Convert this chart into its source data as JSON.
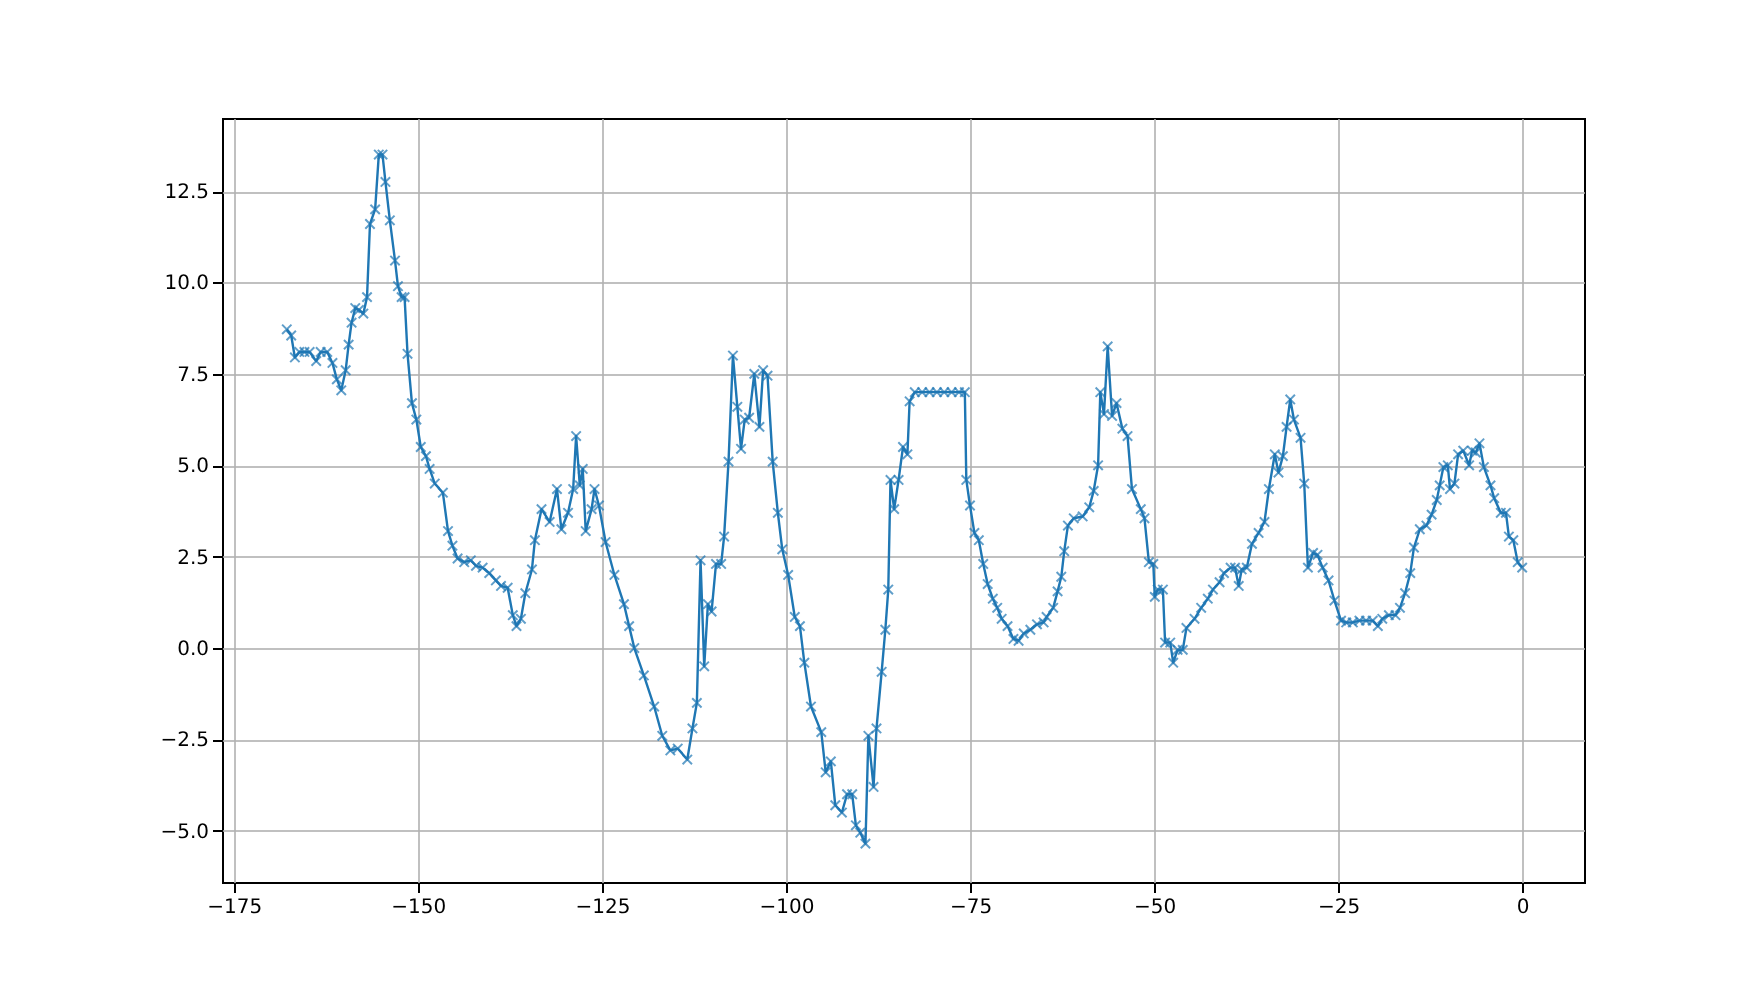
{
  "chart_data": {
    "type": "line",
    "marker": "cross",
    "line_style": "solid",
    "grid": true,
    "xlim": [
      -176.6,
      8.4
    ],
    "ylim": [
      -6.4,
      14.5
    ],
    "xticks": [
      {
        "value": -175,
        "label": "−175"
      },
      {
        "value": -150,
        "label": "−150"
      },
      {
        "value": -125,
        "label": "−125"
      },
      {
        "value": -100,
        "label": "−100"
      },
      {
        "value": -75,
        "label": "−75"
      },
      {
        "value": -50,
        "label": "−50"
      },
      {
        "value": -25,
        "label": "−25"
      },
      0
    ],
    "yticks": [
      {
        "value": -5,
        "label": "−5.0"
      },
      {
        "value": -2.5,
        "label": "−2.5"
      },
      {
        "value": 0,
        "label": "0.0"
      },
      2.5,
      {
        "value": 5,
        "label": "5.0"
      },
      7.5,
      {
        "value": 10,
        "label": "10.0"
      },
      12.5
    ],
    "series": [
      {
        "color": "#1f77b4",
        "x": [
          -167.8,
          -167.2,
          -166.7,
          -166.1,
          -165.4,
          -164.7,
          -163.8,
          -163.2,
          -162.3,
          -161.6,
          -161,
          -160.4,
          -159.8,
          -159.4,
          -159,
          -158.5,
          -158,
          -157.4,
          -156.9,
          -156.5,
          -155.8,
          -155.3,
          -154.8,
          -154.4,
          -153.8,
          -153.1,
          -152.7,
          -152.2,
          -151.8,
          -151.4,
          -150.8,
          -150.2,
          -149.6,
          -148.9,
          -148.4,
          -147.7,
          -146.6,
          -145.9,
          -145.3,
          -144.6,
          -143.7,
          -142.8,
          -142.1,
          -141.2,
          -140.3,
          -139.4,
          -138.7,
          -137.8,
          -137.1,
          -136.6,
          -136,
          -135.4,
          -134.5,
          -134.1,
          -133.2,
          -132.1,
          -131.1,
          -130.5,
          -129.6,
          -128.9,
          -128.5,
          -128,
          -127.6,
          -127.2,
          -126.4,
          -126,
          -125.4,
          -124.5,
          -123.3,
          -122,
          -121.3,
          -120.6,
          -119.3,
          -117.9,
          -116.8,
          -115.7,
          -114.7,
          -113.4,
          -112.7,
          -112.1,
          -111.6,
          -111.1,
          -110.6,
          -110.1,
          -109.5,
          -108.8,
          -108.4,
          -107.8,
          -107.2,
          -106.6,
          -106.1,
          -105.6,
          -105,
          -104.3,
          -103.6,
          -103.1,
          -102.5,
          -101.8,
          -101.1,
          -100.5,
          -99.7,
          -98.8,
          -98.1,
          -97.5,
          -96.6,
          -95.2,
          -94.6,
          -93.9,
          -93.3,
          -92.4,
          -91.7,
          -91,
          -90.5,
          -89.9,
          -89.2,
          -88.8,
          -88.1,
          -87.7,
          -87,
          -86.5,
          -86.1,
          -85.8,
          -85.3,
          -84.7,
          -84.1,
          -83.5,
          -83.2,
          -82.5,
          -81.5,
          -80.5,
          -79.5,
          -78.5,
          -77.5,
          -76.5,
          -75.7,
          -75.5,
          -75,
          -74.4,
          -73.8,
          -73.2,
          -72.6,
          -71.9,
          -71.3,
          -70.7,
          -69.9,
          -69.1,
          -68.4,
          -67.7,
          -66.8,
          -65.9,
          -65,
          -64.6,
          -63.7,
          -63.1,
          -62.6,
          -62.2,
          -61.7,
          -60.9,
          -59.7,
          -58.8,
          -58.2,
          -57.6,
          -57.3,
          -56.8,
          -56.3,
          -55.7,
          -55.1,
          -54.3,
          -53.6,
          -53,
          -51.8,
          -51.3,
          -50.7,
          -50.1,
          -49.9,
          -49.5,
          -48.8,
          -48.5,
          -47.8,
          -47.4,
          -46.8,
          -46.1,
          -45.6,
          -44.5,
          -43.6,
          -42.7,
          -42,
          -41.1,
          -40.5,
          -39.6,
          -39,
          -38.5,
          -38.1,
          -37.4,
          -36.7,
          -35.8,
          -35,
          -34.4,
          -33.6,
          -33.1,
          -32.5,
          -32,
          -31.5,
          -31,
          -30.1,
          -29.6,
          -29.1,
          -28.4,
          -27.8,
          -27.1,
          -26.3,
          -25.5,
          -24.6,
          -23.9,
          -23,
          -22.1,
          -21.2,
          -20.3,
          -19.6,
          -19,
          -18.1,
          -17.2,
          -16.6,
          -15.9,
          -15.2,
          -14.7,
          -13.9,
          -13,
          -12.3,
          -11.6,
          -11.2,
          -10.7,
          -10.1,
          -9.8,
          -9.2,
          -8.7,
          -8,
          -7.2,
          -6.8,
          -6.3,
          -5.8,
          -5.2,
          -4.3,
          -3.8,
          -2.9,
          -2.2,
          -1.8,
          -1.2,
          -0.6,
          0
        ],
        "values": [
          8.72,
          8.55,
          7.95,
          8.1,
          8.1,
          8.1,
          7.85,
          8.1,
          8.1,
          7.8,
          7.35,
          7.05,
          7.6,
          8.3,
          8.9,
          9.3,
          9.25,
          9.15,
          9.6,
          11.6,
          12.0,
          13.5,
          13.5,
          12.75,
          11.7,
          10.6,
          9.9,
          9.6,
          9.6,
          8.05,
          6.7,
          6.25,
          5.5,
          5.25,
          4.9,
          4.5,
          4.25,
          3.2,
          2.8,
          2.45,
          2.35,
          2.4,
          2.25,
          2.2,
          2.05,
          1.85,
          1.7,
          1.65,
          0.9,
          0.6,
          0.8,
          1.5,
          2.15,
          2.95,
          3.8,
          3.45,
          4.35,
          3.25,
          3.7,
          4.35,
          5.8,
          4.45,
          4.9,
          3.2,
          3.8,
          4.35,
          3.9,
          2.9,
          2.0,
          1.2,
          0.6,
          0,
          -0.75,
          -1.6,
          -2.4,
          -2.8,
          -2.75,
          -3.05,
          -2.2,
          -1.5,
          2.4,
          -0.5,
          1.2,
          1.0,
          2.3,
          2.3,
          3.05,
          5.1,
          8.0,
          6.6,
          5.45,
          6.25,
          6.3,
          7.5,
          6.05,
          7.6,
          7.45,
          5.1,
          3.7,
          2.7,
          2.0,
          0.85,
          0.6,
          -0.4,
          -1.6,
          -2.3,
          -3.4,
          -3.1,
          -4.3,
          -4.5,
          -4.0,
          -4.0,
          -4.85,
          -5.05,
          -5.35,
          -2.4,
          -3.8,
          -2.2,
          -0.65,
          0.5,
          1.6,
          4.6,
          3.8,
          4.6,
          5.5,
          5.3,
          6.75,
          7.0,
          7.0,
          7.0,
          7.0,
          7.0,
          7.0,
          7.0,
          7.0,
          4.6,
          3.9,
          3.15,
          2.95,
          2.3,
          1.75,
          1.35,
          1.1,
          0.8,
          0.6,
          0.25,
          0.2,
          0.4,
          0.5,
          0.65,
          0.7,
          0.85,
          1.1,
          1.55,
          1.95,
          2.65,
          3.35,
          3.55,
          3.6,
          3.85,
          4.3,
          5.0,
          7.0,
          6.4,
          8.25,
          6.35,
          6.7,
          6.0,
          5.8,
          4.35,
          3.8,
          3.55,
          2.35,
          2.3,
          1.4,
          1.6,
          1.6,
          0.15,
          0.15,
          -0.4,
          -0.05,
          -0.05,
          0.55,
          0.8,
          1.1,
          1.35,
          1.6,
          1.8,
          2.05,
          2.2,
          2.2,
          1.7,
          2.15,
          2.2,
          2.85,
          3.15,
          3.45,
          4.35,
          5.3,
          4.8,
          5.25,
          6.05,
          6.8,
          6.25,
          5.75,
          4.5,
          2.2,
          2.6,
          2.55,
          2.2,
          1.85,
          1.3,
          0.75,
          0.7,
          0.7,
          0.75,
          0.75,
          0.75,
          0.6,
          0.8,
          0.9,
          0.9,
          1.1,
          1.5,
          2.05,
          2.75,
          3.25,
          3.35,
          3.65,
          4.05,
          4.45,
          4.95,
          5.0,
          4.35,
          4.5,
          5.3,
          5.4,
          5.0,
          5.4,
          5.35,
          5.6,
          4.95,
          4.45,
          4.1,
          3.7,
          3.7,
          3.05,
          2.95,
          2.35,
          2.2
        ]
      }
    ]
  }
}
